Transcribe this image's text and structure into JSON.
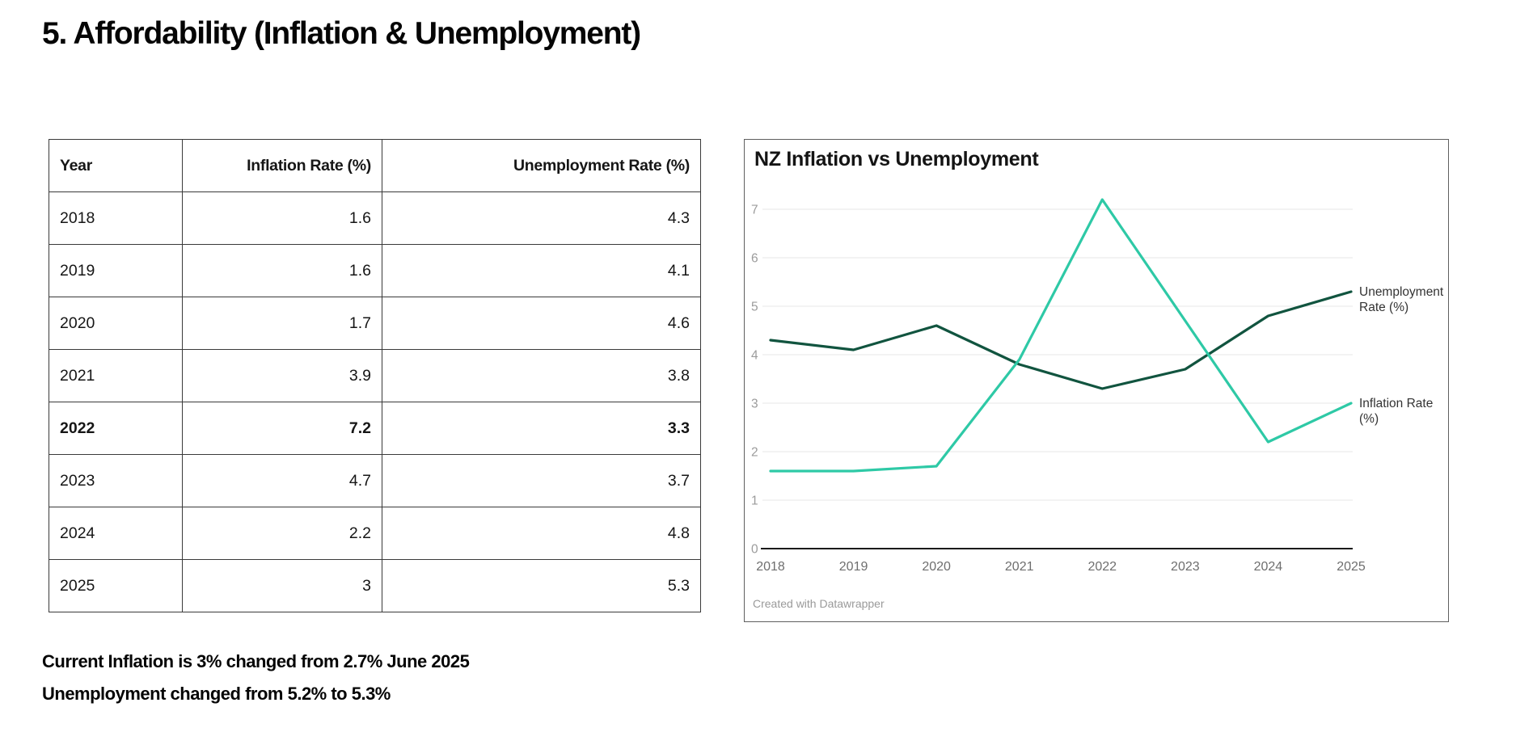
{
  "page": {
    "title": "5. Affordability (Inflation & Unemployment)"
  },
  "table": {
    "columns": [
      "Year",
      "Inflation Rate (%)",
      "Unemployment Rate (%)"
    ],
    "rows": [
      {
        "year": "2018",
        "inflation": "1.6",
        "unemployment": "4.3",
        "bold": "none"
      },
      {
        "year": "2019",
        "inflation": "1.6",
        "unemployment": "4.1",
        "bold": "none"
      },
      {
        "year": "2020",
        "inflation": "1.7",
        "unemployment": "4.6",
        "bold": "none"
      },
      {
        "year": "2021",
        "inflation": "3.9",
        "unemployment": "3.8",
        "bold": "none"
      },
      {
        "year": "2022",
        "inflation": "7.2",
        "unemployment": "3.3",
        "bold": "row"
      },
      {
        "year": "2023",
        "inflation": "4.7",
        "unemployment": "3.7",
        "bold": "none"
      },
      {
        "year": "2024",
        "inflation": "2.2",
        "unemployment": "4.8",
        "bold": "none"
      },
      {
        "year": "2025",
        "inflation": "3",
        "unemployment": "5.3",
        "bold": "values"
      }
    ]
  },
  "chart_data": {
    "type": "line",
    "title": "NZ Inflation vs Unemployment",
    "x": [
      "2018",
      "2019",
      "2020",
      "2021",
      "2022",
      "2023",
      "2024",
      "2025"
    ],
    "series": [
      {
        "name": "Unemployment Rate (%)",
        "label_lines": [
          "Unemployment",
          "Rate (%)"
        ],
        "color": "#11543f",
        "values": [
          4.3,
          4.1,
          4.6,
          3.8,
          3.3,
          3.7,
          4.8,
          5.3
        ]
      },
      {
        "name": "Inflation Rate (%)",
        "label_lines": [
          "Inflation Rate",
          "(%)"
        ],
        "color": "#2ec9a6",
        "values": [
          1.6,
          1.6,
          1.7,
          3.9,
          7.2,
          4.7,
          2.2,
          3
        ]
      }
    ],
    "ylim": [
      0,
      7
    ],
    "yticks": [
      0,
      1,
      2,
      3,
      4,
      5,
      6,
      7
    ],
    "grid": true,
    "legend_position": "direct-right-labels",
    "attribution": "Created with Datawrapper",
    "colors": {
      "gridline": "#e7e7e7",
      "axis": "#1a1a1a",
      "ytick_label": "#9b9b9b",
      "xtick_label": "#6e6e6e",
      "series_label": "#333333"
    }
  },
  "notes": [
    "Current Inflation is 3% changed from 2.7% June 2025",
    "Unemployment changed from 5.2% to 5.3%"
  ]
}
